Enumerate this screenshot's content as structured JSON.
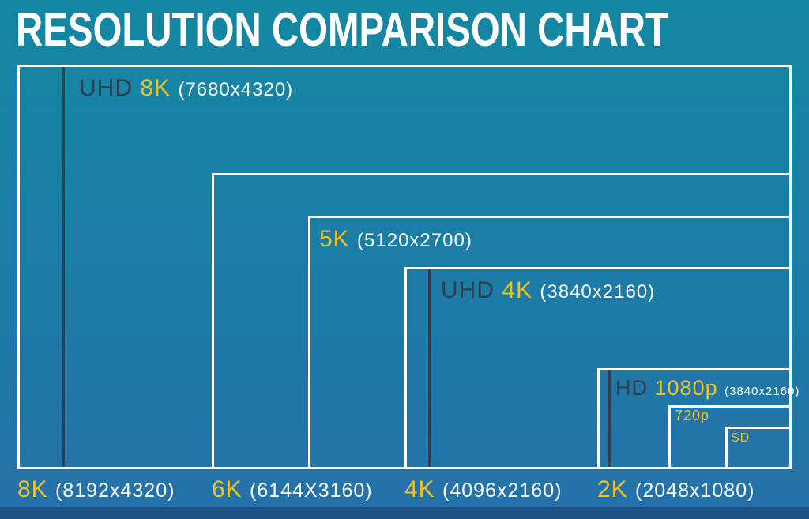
{
  "title": "RESOLUTION COMPARISON CHART",
  "colors": {
    "background_top": "#1487a2",
    "background_bottom": "#2571a9",
    "accent_yellow": "#eec21f",
    "dark_text": "#333e48",
    "white_text": "#ffffff",
    "footer_bar": "#1e5285",
    "box_border": "#ffffff"
  },
  "labels": {
    "uhd8k": {
      "prefix": "UHD",
      "value": "8K",
      "detail": "(7680x4320)"
    },
    "k5": {
      "value": "5K",
      "detail": "(5120x2700)"
    },
    "uhd4k": {
      "prefix": "UHD",
      "value": "4K",
      "detail": "(3840x2160)"
    },
    "hd1080": {
      "prefix": "HD",
      "value": "1080p",
      "detail": "(3840x2160)"
    },
    "p720": {
      "value": "720p"
    },
    "sd": {
      "value": "SD"
    },
    "bottom_8k": {
      "value": "8K",
      "detail": "(8192x4320)"
    },
    "bottom_6k": {
      "value": "6K",
      "detail": "(6144X3160)"
    },
    "bottom_4k": {
      "value": "4K",
      "detail": "(4096x2160)"
    },
    "bottom_2k": {
      "value": "2K",
      "detail": "(2048x1080)"
    }
  },
  "chart_data": {
    "type": "table",
    "title": "RESOLUTION COMPARISON CHART",
    "representation": "nested rectangles proportional to pixel dimensions, sharing bottom-right corner",
    "items": [
      {
        "label": "8K",
        "resolution": "8192x4320",
        "label_style": "outside-bottom"
      },
      {
        "label": "UHD 8K",
        "resolution": "7680x4320",
        "label_style": "inside, dark left divider line"
      },
      {
        "label": "6K",
        "resolution": "6144X3160",
        "label_style": "outside-bottom"
      },
      {
        "label": "5K",
        "resolution": "5120x2700",
        "label_style": "inside"
      },
      {
        "label": "UHD 4K",
        "resolution": "3840x2160",
        "label_style": "inside, dark left divider line"
      },
      {
        "label": "4K",
        "resolution": "4096x2160",
        "label_style": "outside-bottom"
      },
      {
        "label": "2K",
        "resolution": "2048x1080",
        "label_style": "outside-bottom"
      },
      {
        "label": "HD 1080p",
        "resolution": "3840x2160",
        "label_style": "inside, dark left divider line"
      },
      {
        "label": "720p",
        "resolution": "",
        "label_style": "inside"
      },
      {
        "label": "SD",
        "resolution": "",
        "label_style": "inside"
      }
    ]
  }
}
